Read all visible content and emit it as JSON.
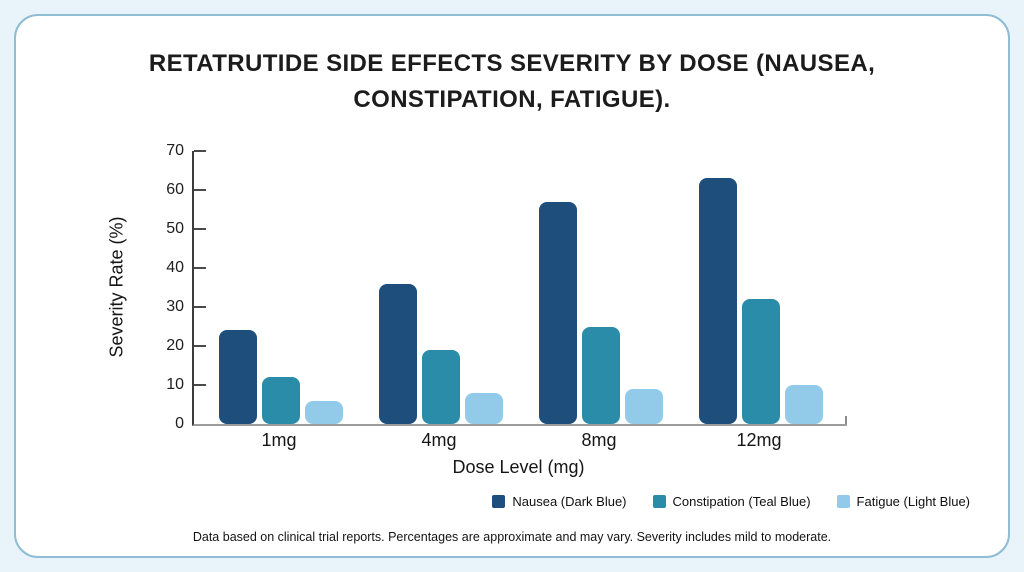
{
  "title": "RETATRUTIDE SIDE EFFECTS SEVERITY BY DOSE (NAUSEA, CONSTIPATION, FATIGUE).",
  "footnote": "Data based on clinical trial reports. Percentages are approximate and may vary. Severity includes mild to moderate.",
  "chart_data": {
    "type": "bar",
    "title": "RETATRUTIDE SIDE EFFECTS SEVERITY BY DOSE (NAUSEA, CONSTIPATION, FATIGUE).",
    "categories": [
      "1mg",
      "4mg",
      "8mg",
      "12mg"
    ],
    "series": [
      {
        "name": "Nausea (Dark Blue)",
        "color": "#1d4e7c",
        "values": [
          24,
          36,
          57,
          63
        ]
      },
      {
        "name": "Constipation (Teal Blue)",
        "color": "#2b8caa",
        "values": [
          12,
          19,
          25,
          32
        ]
      },
      {
        "name": "Fatigue (Light Blue)",
        "color": "#92cbe9",
        "values": [
          6,
          8,
          9,
          10
        ]
      }
    ],
    "xlabel": "Dose Level (mg)",
    "ylabel": "Severity Rate (%)",
    "ylim": [
      0,
      70
    ],
    "ytick_step": 10,
    "yticks": [
      0,
      10,
      20,
      30,
      40,
      50,
      60,
      70
    ],
    "grid": false,
    "legend_position": "bottom-right"
  },
  "colors": {
    "page_background": "#e9f3fa",
    "card_background": "#ffffff",
    "card_border": "#8fbdd3",
    "y_axis": "#3c3c3c",
    "x_axis": "#9c9c9c"
  }
}
